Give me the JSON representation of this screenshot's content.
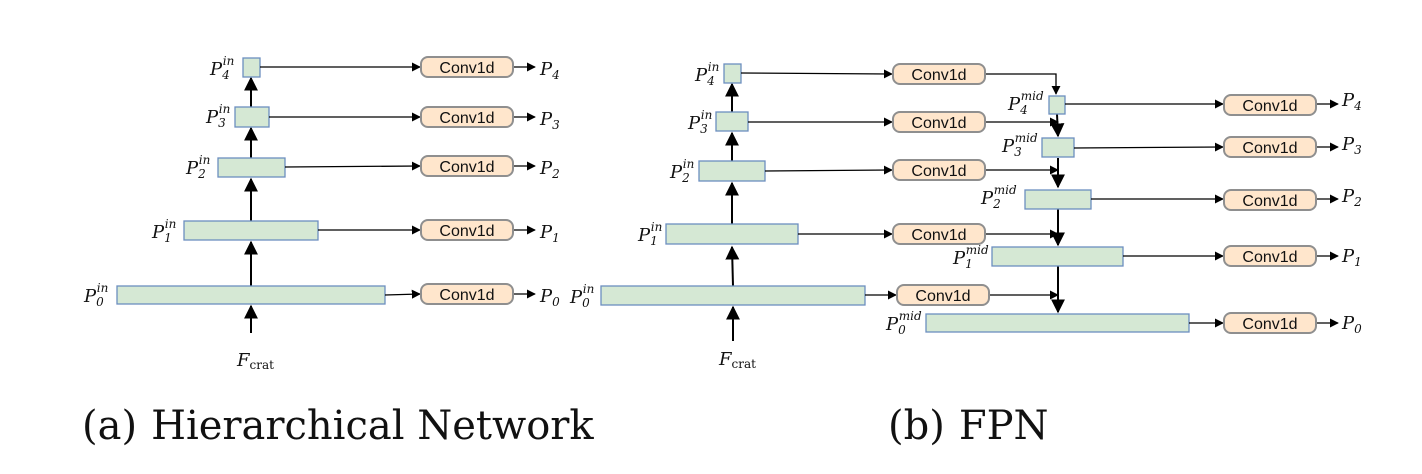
{
  "diagrams": {
    "a": {
      "caption_tag": "(a)",
      "caption_text": "Hierarchical Network",
      "levels": [
        {
          "base": "P",
          "sub": "0",
          "sup": "in",
          "conv": "Conv1d",
          "out_base": "P",
          "out_sub": "0"
        },
        {
          "base": "P",
          "sub": "1",
          "sup": "in",
          "conv": "Conv1d",
          "out_base": "P",
          "out_sub": "1"
        },
        {
          "base": "P",
          "sub": "2",
          "sup": "in",
          "conv": "Conv1d",
          "out_base": "P",
          "out_sub": "2"
        },
        {
          "base": "P",
          "sub": "3",
          "sup": "in",
          "conv": "Conv1d",
          "out_base": "P",
          "out_sub": "3"
        },
        {
          "base": "P",
          "sub": "4",
          "sup": "in",
          "conv": "Conv1d",
          "out_base": "P",
          "out_sub": "4"
        }
      ],
      "input": {
        "base": "F",
        "sub": "crat"
      }
    },
    "b": {
      "caption_tag": "(b)",
      "caption_text": "FPN",
      "input_levels": [
        {
          "base": "P",
          "sub": "0",
          "sup": "in",
          "conv": "Conv1d"
        },
        {
          "base": "P",
          "sub": "1",
          "sup": "in",
          "conv": "Conv1d"
        },
        {
          "base": "P",
          "sub": "2",
          "sup": "in",
          "conv": "Conv1d"
        },
        {
          "base": "P",
          "sub": "3",
          "sup": "in",
          "conv": "Conv1d"
        },
        {
          "base": "P",
          "sub": "4",
          "sup": "in",
          "conv": "Conv1d"
        }
      ],
      "mid_levels": [
        {
          "base": "P",
          "sub": "0",
          "sup": "mid",
          "conv": "Conv1d",
          "out_base": "P",
          "out_sub": "0"
        },
        {
          "base": "P",
          "sub": "1",
          "sup": "mid",
          "conv": "Conv1d",
          "out_base": "P",
          "out_sub": "1"
        },
        {
          "base": "P",
          "sub": "2",
          "sup": "mid",
          "conv": "Conv1d",
          "out_base": "P",
          "out_sub": "2"
        },
        {
          "base": "P",
          "sub": "3",
          "sup": "mid",
          "conv": "Conv1d",
          "out_base": "P",
          "out_sub": "3"
        },
        {
          "base": "P",
          "sub": "4",
          "sup": "mid",
          "conv": "Conv1d",
          "out_base": "P",
          "out_sub": "4"
        }
      ],
      "input": {
        "base": "F",
        "sub": "crat"
      }
    }
  },
  "colors": {
    "feature_fill": "#d5e8d4",
    "feature_stroke": "#6c8ebf",
    "conv_fill": "#ffe6cc",
    "conv_stroke": "#8f8f8f"
  }
}
